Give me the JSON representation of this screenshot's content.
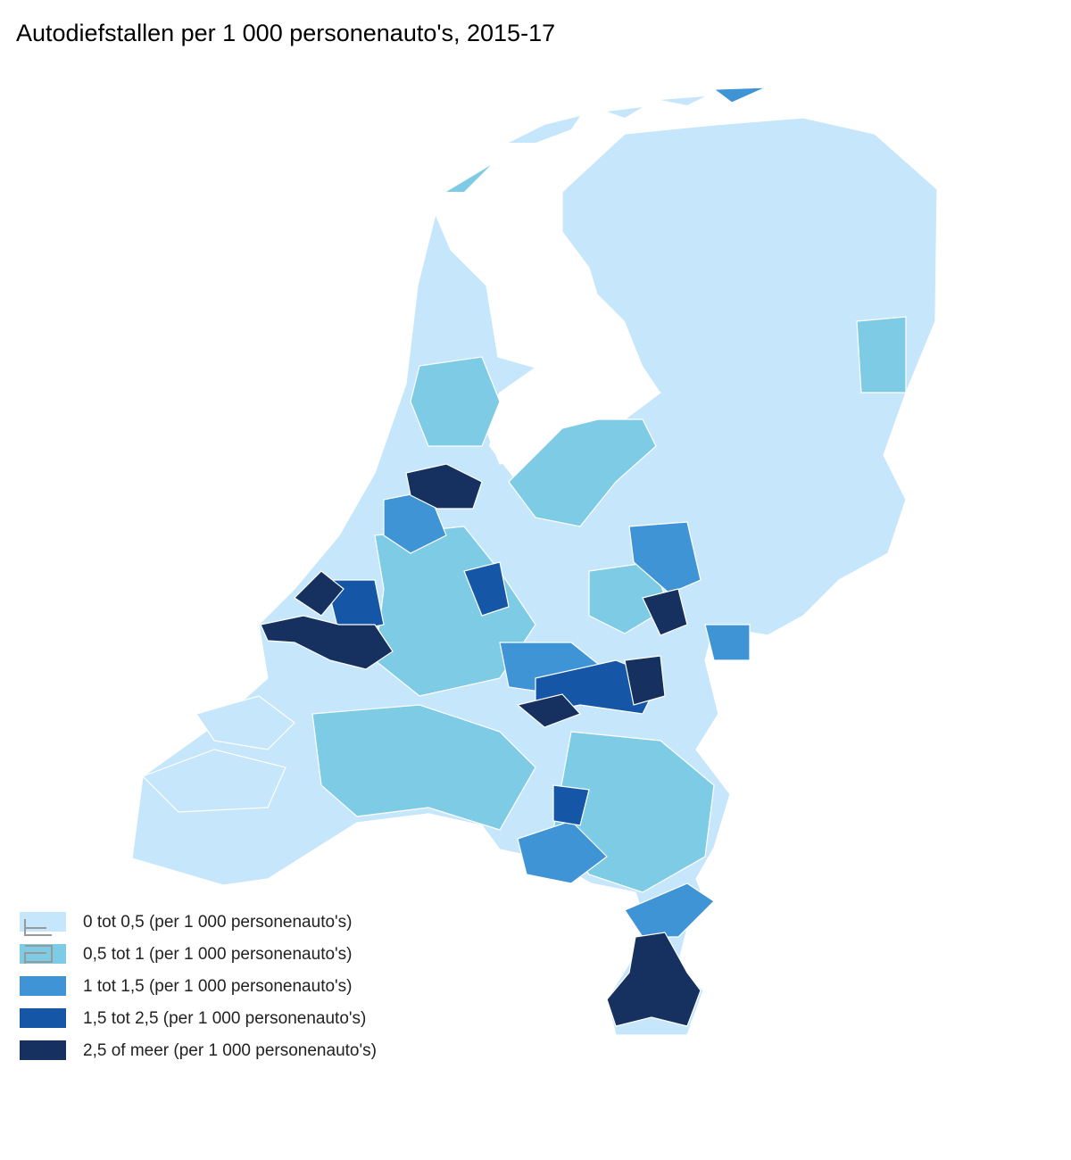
{
  "title": "Autodiefstallen per 1 000 personenauto's, 2015-17",
  "legend": [
    {
      "label": "0 tot 0,5 (per 1 000 personenauto's)",
      "color": "#c6e6fb"
    },
    {
      "label": "0,5 tot 1 (per 1 000 personenauto's)",
      "color": "#7ecbe6"
    },
    {
      "label": "1 tot 1,5 (per 1 000 personenauto's)",
      "color": "#3f94d6"
    },
    {
      "label": "1,5 tot 2,5 (per 1 000 personenauto's)",
      "color": "#1557a6"
    },
    {
      "label": "2,5 of meer (per 1 000 personenauto's)",
      "color": "#16305f"
    }
  ]
}
